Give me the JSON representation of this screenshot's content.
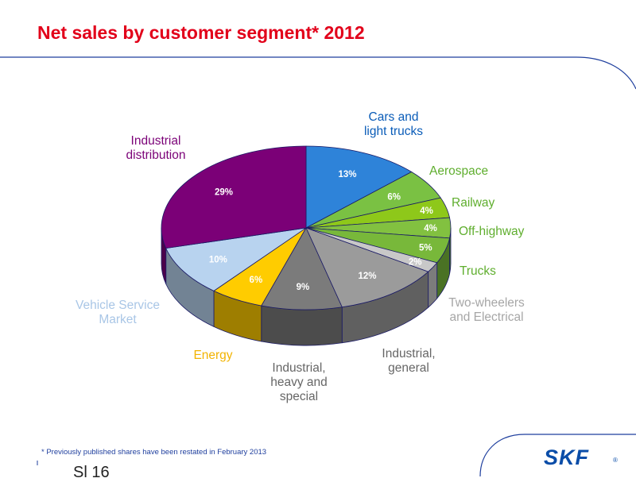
{
  "title": "Net sales by customer segment* 2012",
  "footnote": "* Previously published shares have been restated in February 2013",
  "slide_number": "Sl 16",
  "logo": {
    "text": "SKF",
    "reg": "®",
    "color": "#0a4da8"
  },
  "chart_data": {
    "type": "pie",
    "title": "Net sales by customer segment* 2012",
    "value_unit": "%",
    "slices": [
      {
        "name": "Cars and\nlight trucks",
        "value": 13,
        "color": "#2e83d9",
        "label_color": "#0a5cb8"
      },
      {
        "name": "Aerospace",
        "value": 6,
        "color": "#7ac143",
        "label_color": "#5fae2e"
      },
      {
        "name": "Railway",
        "value": 4,
        "color": "#8ec81a",
        "label_color": "#5fae2e"
      },
      {
        "name": "Off-highway",
        "value": 4,
        "color": "#82c140",
        "label_color": "#5fae2e"
      },
      {
        "name": "Trucks",
        "value": 5,
        "color": "#78b83a",
        "label_color": "#5fae2e"
      },
      {
        "name": "Two-wheelers\nand Electrical",
        "value": 2,
        "color": "#c8c8c8",
        "label_color": "#a6a6a6"
      },
      {
        "name": "Industrial,\ngeneral",
        "value": 12,
        "color": "#9b9b9b",
        "label_color": "#666666"
      },
      {
        "name": "Industrial,\nheavy and\nspecial",
        "value": 9,
        "color": "#7b7b7b",
        "label_color": "#666666"
      },
      {
        "name": "Energy",
        "value": 6,
        "color": "#ffcc00",
        "label_color": "#f2b300"
      },
      {
        "name": "Vehicle Service\nMarket",
        "value": 10,
        "color": "#b8d3ef",
        "label_color": "#a9c6e6"
      },
      {
        "name": "Industrial\ndistribution",
        "value": 29,
        "color": "#7b0077",
        "label_color": "#7b0077"
      }
    ],
    "legend": "none"
  }
}
